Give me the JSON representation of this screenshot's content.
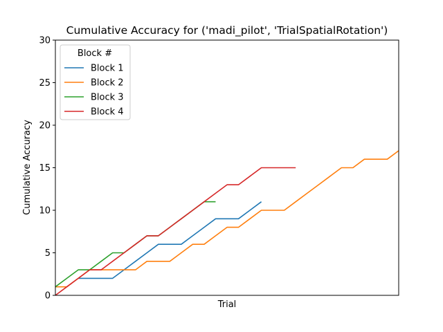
{
  "chart_data": {
    "type": "line",
    "title": "Cumulative Accuracy for ('madi_pilot', 'TrialSpatialRotation')",
    "xlabel": "Trial",
    "ylabel": "Cumulative Accuracy",
    "xlim": [
      0,
      30
    ],
    "ylim": [
      0,
      30
    ],
    "yticks": [
      0,
      5,
      10,
      15,
      20,
      25,
      30
    ],
    "xticks_visible": false,
    "grid": false,
    "legend": {
      "title": "Block #",
      "placement": "top-left"
    },
    "series": [
      {
        "name": "Block 1",
        "color": "#1f77b4",
        "x": [
          2,
          3,
          4,
          5,
          6,
          7,
          8,
          9,
          10,
          11,
          12,
          13,
          14,
          15,
          16,
          17,
          18,
          19
        ],
        "y": [
          2,
          2,
          2,
          2,
          3,
          4,
          5,
          6,
          6,
          6,
          7,
          8,
          9,
          9,
          9,
          10,
          11,
          null
        ]
      },
      {
        "name": "Block 2",
        "color": "#ff7f0e",
        "x": [
          0,
          1,
          2,
          3,
          4,
          5,
          6,
          7,
          8,
          9,
          10,
          11,
          12,
          13,
          14,
          15,
          16,
          17,
          18,
          19,
          20,
          21,
          22,
          23,
          24,
          25,
          26,
          27,
          28,
          29,
          30
        ],
        "y": [
          1,
          1,
          2,
          3,
          3,
          3,
          3,
          3,
          4,
          4,
          4,
          5,
          6,
          6,
          7,
          8,
          8,
          9,
          10,
          10,
          10,
          11,
          12,
          13,
          14,
          15,
          15,
          16,
          16,
          16,
          17
        ]
      },
      {
        "name": "Block 3",
        "color": "#2ca02c",
        "x": [
          0,
          1,
          2,
          3,
          4,
          5,
          6,
          7,
          8,
          9,
          10,
          11,
          12,
          13,
          14
        ],
        "y": [
          1,
          2,
          3,
          3,
          4,
          5,
          5,
          6,
          7,
          7,
          8,
          9,
          10,
          11,
          11
        ]
      },
      {
        "name": "Block 4",
        "color": "#d62728",
        "x": [
          0,
          1,
          2,
          3,
          4,
          5,
          6,
          7,
          8,
          9,
          10,
          11,
          12,
          13,
          14,
          15,
          16,
          17,
          18,
          19,
          20,
          21
        ],
        "y": [
          0,
          1,
          2,
          3,
          3,
          4,
          5,
          6,
          7,
          7,
          8,
          9,
          10,
          11,
          12,
          13,
          13,
          14,
          15,
          15,
          15,
          15
        ]
      }
    ]
  }
}
